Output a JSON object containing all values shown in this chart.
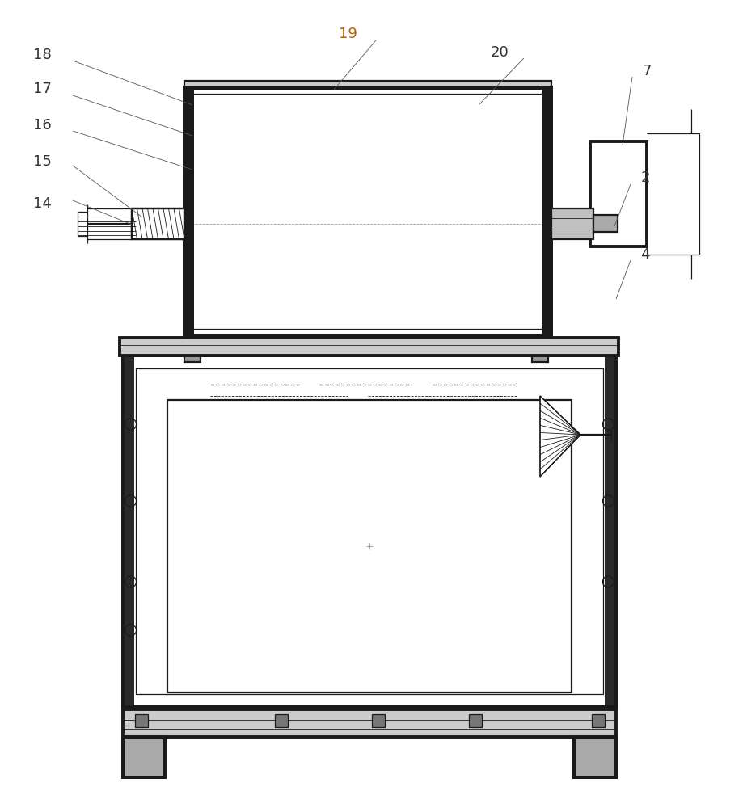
{
  "bg_color": "#ffffff",
  "lc": "#1a1a1a",
  "gray_dark": "#444444",
  "gray_med": "#888888",
  "gray_light": "#cccccc",
  "label_color": "#333333",
  "label_color_19": "#b85c00",
  "lw_thick": 2.8,
  "lw_med": 1.6,
  "lw_thin": 0.9,
  "lw_vthin": 0.6
}
